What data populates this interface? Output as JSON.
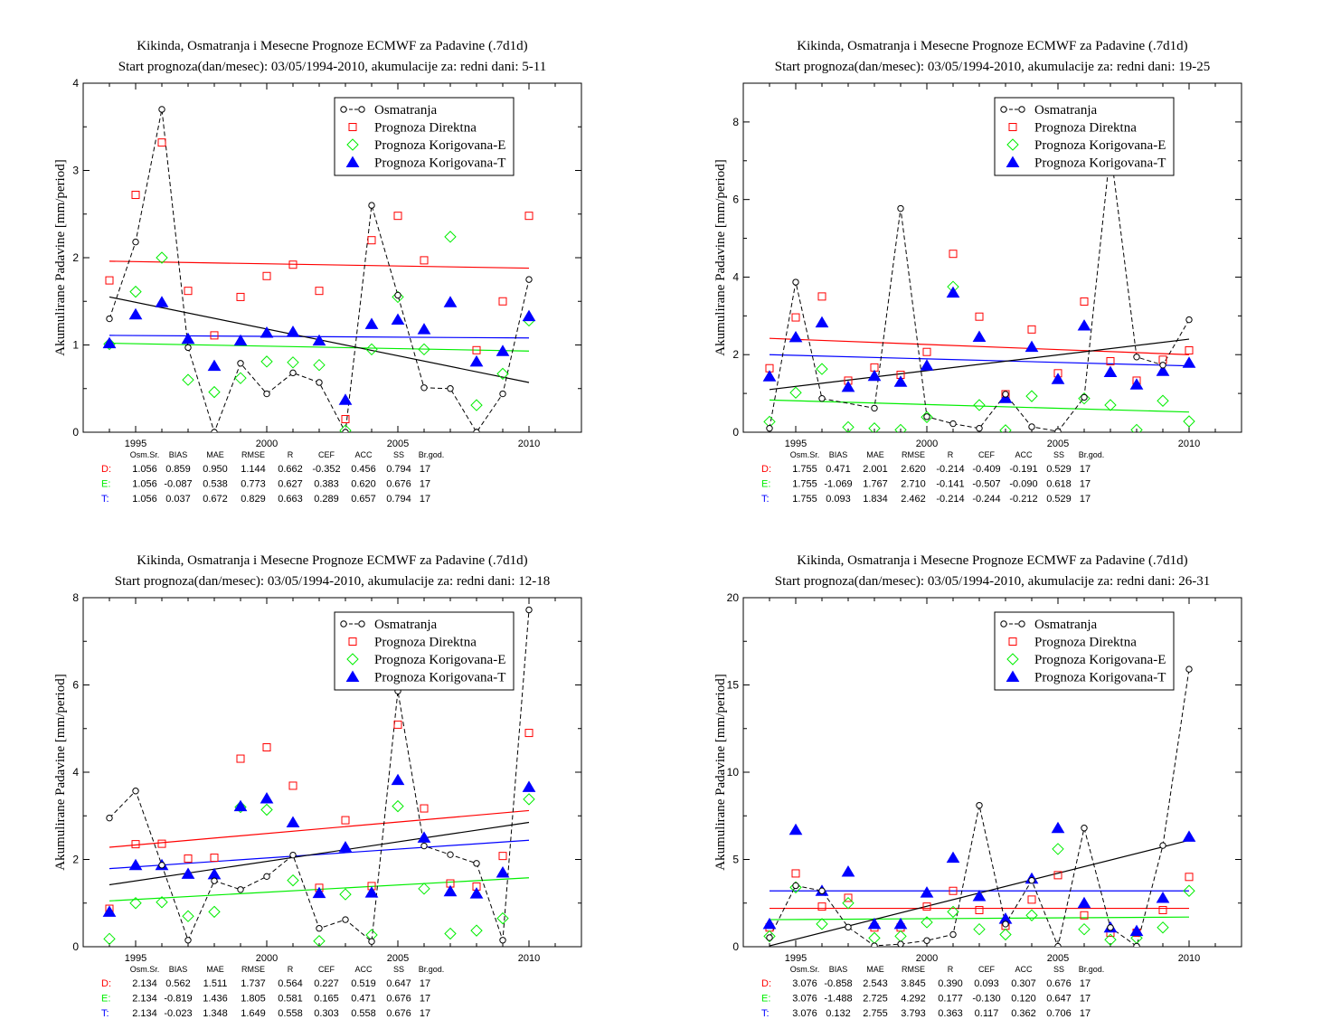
{
  "colors": {
    "obs": "#000000",
    "direct": "#ff0000",
    "corrE": "#00ee00",
    "corrT": "#0000ff"
  },
  "legend": [
    "Osmatranja",
    "Prognoza Direktna",
    "Prognoza Korigovana-E",
    "Prognoza Korigovana-T"
  ],
  "stats_headers": [
    "Osm.Sr.",
    "BIAS",
    "MAE",
    "RMSE",
    "R",
    "CEF",
    "ACC",
    "SS",
    "Br.god."
  ],
  "chart_data": [
    {
      "type": "scatter",
      "title": "Kikinda, Osmatranja i Mesecne Prognoze ECMWF za Padavine (.7d1d)",
      "subtitle": "Start prognoza(dan/mesec): 03/05/1994-2010, akumulacije za: redni dani: 5-11",
      "xlabel": "",
      "ylabel": "Akumulirane Padavine [mm/period]",
      "xlim": [
        1993,
        2012
      ],
      "ylim": [
        0,
        4
      ],
      "xticks": [
        1995,
        2000,
        2005,
        2010
      ],
      "yticks": [
        0,
        1,
        2,
        3,
        4
      ],
      "x": [
        1994,
        1995,
        1996,
        1997,
        1998,
        1999,
        2000,
        2001,
        2002,
        2003,
        2004,
        2005,
        2006,
        2007,
        2008,
        2009,
        2010
      ],
      "series": [
        {
          "name": "Osmatranja",
          "values": [
            1.3,
            2.18,
            3.7,
            0.97,
            0.0,
            0.79,
            0.44,
            0.68,
            0.57,
            0.0,
            2.6,
            1.57,
            0.51,
            0.5,
            0.0,
            0.44,
            1.75
          ]
        },
        {
          "name": "Prognoza Direktna",
          "values": [
            1.74,
            2.72,
            3.32,
            1.62,
            1.11,
            1.55,
            1.79,
            1.92,
            1.62,
            0.15,
            2.2,
            2.48,
            1.97,
            null,
            0.94,
            1.5,
            2.48
          ]
        },
        {
          "name": "Prognoza Korigovana-E",
          "values": [
            1.01,
            1.61,
            2.0,
            0.6,
            0.46,
            0.62,
            0.81,
            0.8,
            0.77,
            0.02,
            0.95,
            1.55,
            0.95,
            2.24,
            0.31,
            0.67,
            1.28
          ]
        },
        {
          "name": "Prognoza Korigovana-T",
          "values": [
            1.02,
            1.35,
            1.49,
            1.07,
            0.76,
            1.05,
            1.14,
            1.15,
            1.05,
            0.37,
            1.24,
            1.29,
            1.18,
            1.49,
            0.81,
            0.93,
            1.33
          ]
        }
      ],
      "trends": {
        "obs": [
          1.55,
          0.57
        ],
        "direct": [
          1.96,
          1.88
        ],
        "corrE": [
          1.02,
          0.93
        ],
        "corrT": [
          1.11,
          1.08
        ]
      },
      "stats": [
        {
          "label": "D:",
          "values": [
            "1.056",
            "0.859",
            "0.950",
            "1.144",
            "0.662",
            "-0.352",
            "0.456",
            "0.794",
            "17"
          ]
        },
        {
          "label": "E:",
          "values": [
            "1.056",
            "-0.087",
            "0.538",
            "0.773",
            "0.627",
            "0.383",
            "0.620",
            "0.676",
            "17"
          ]
        },
        {
          "label": "T:",
          "values": [
            "1.056",
            "0.037",
            "0.672",
            "0.829",
            "0.663",
            "0.289",
            "0.657",
            "0.794",
            "17"
          ]
        }
      ]
    },
    {
      "type": "scatter",
      "title": "Kikinda, Osmatranja i Mesecne Prognoze ECMWF za Padavine (.7d1d)",
      "subtitle": "Start prognoza(dan/mesec): 03/05/1994-2010, akumulacije za: redni dani: 19-25",
      "xlabel": "",
      "ylabel": "Akumulirane Padavine [mm/period]",
      "xlim": [
        1993,
        2012
      ],
      "ylim": [
        0,
        9
      ],
      "xticks": [
        1995,
        2000,
        2005,
        2010
      ],
      "yticks": [
        0,
        2,
        4,
        6,
        8
      ],
      "x": [
        1994,
        1995,
        1996,
        1997,
        1998,
        1999,
        2000,
        2001,
        2002,
        2003,
        2004,
        2005,
        2006,
        2007,
        2008,
        2009,
        2010
      ],
      "series": [
        {
          "name": "Osmatranja",
          "values": [
            0.1,
            3.87,
            0.87,
            null,
            0.62,
            5.77,
            0.4,
            0.22,
            0.1,
            0.98,
            0.14,
            0.02,
            0.9,
            7.3,
            1.94,
            1.73,
            2.9
          ]
        },
        {
          "name": "Prognoza Direktna",
          "values": [
            1.65,
            2.96,
            3.5,
            1.33,
            1.67,
            1.48,
            2.07,
            4.6,
            2.98,
            0.98,
            2.65,
            1.52,
            3.37,
            1.83,
            1.33,
            1.87,
            2.11
          ]
        },
        {
          "name": "Prognoza Korigovana-E",
          "values": [
            0.27,
            1.02,
            1.63,
            0.13,
            0.1,
            0.06,
            0.39,
            3.75,
            0.7,
            0.05,
            0.93,
            null,
            0.87,
            0.7,
            0.06,
            0.81,
            0.28
          ]
        },
        {
          "name": "Prognoza Korigovana-T",
          "values": [
            1.44,
            2.45,
            2.83,
            1.17,
            1.45,
            1.3,
            1.72,
            3.6,
            2.46,
            0.88,
            2.2,
            1.37,
            2.75,
            1.55,
            1.23,
            1.58,
            1.79
          ]
        }
      ],
      "trends": {
        "obs": [
          1.1,
          2.4
        ],
        "direct": [
          2.42,
          2.0
        ],
        "corrE": [
          0.83,
          0.52
        ],
        "corrT": [
          2.0,
          1.71
        ]
      },
      "stats": [
        {
          "label": "D:",
          "values": [
            "1.755",
            "0.471",
            "2.001",
            "2.620",
            "-0.214",
            "-0.409",
            "-0.191",
            "0.529",
            "17"
          ]
        },
        {
          "label": "E:",
          "values": [
            "1.755",
            "-1.069",
            "1.767",
            "2.710",
            "-0.141",
            "-0.507",
            "-0.090",
            "0.618",
            "17"
          ]
        },
        {
          "label": "T:",
          "values": [
            "1.755",
            "0.093",
            "1.834",
            "2.462",
            "-0.214",
            "-0.244",
            "-0.212",
            "0.529",
            "17"
          ]
        }
      ]
    },
    {
      "type": "scatter",
      "title": "Kikinda, Osmatranja i Mesecne Prognoze ECMWF za Padavine (.7d1d)",
      "subtitle": "Start prognoza(dan/mesec): 03/05/1994-2010, akumulacije za: redni dani: 12-18",
      "xlabel": "",
      "ylabel": "Akumulirane Padavine [mm/period]",
      "xlim": [
        1993,
        2012
      ],
      "ylim": [
        0,
        8
      ],
      "xticks": [
        1995,
        2000,
        2005,
        2010
      ],
      "yticks": [
        0,
        2,
        4,
        6,
        8
      ],
      "x": [
        1994,
        1995,
        1996,
        1997,
        1998,
        1999,
        2000,
        2001,
        2002,
        2003,
        2004,
        2005,
        2006,
        2007,
        2008,
        2009,
        2010
      ],
      "series": [
        {
          "name": "Osmatranja",
          "values": [
            2.95,
            3.57,
            1.87,
            0.15,
            1.51,
            1.31,
            1.61,
            2.1,
            0.42,
            0.62,
            0.12,
            5.86,
            2.31,
            2.11,
            1.91,
            0.15,
            7.72
          ]
        },
        {
          "name": "Prognoza Direktna",
          "values": [
            0.87,
            2.35,
            2.36,
            2.02,
            2.04,
            4.31,
            4.57,
            3.69,
            1.35,
            2.9,
            1.39,
            5.09,
            3.17,
            1.45,
            1.38,
            2.08,
            4.9
          ]
        },
        {
          "name": "Prognoza Korigovana-E",
          "values": [
            0.18,
            1.0,
            1.02,
            0.7,
            0.8,
            3.2,
            3.14,
            1.52,
            0.13,
            1.2,
            0.27,
            3.22,
            1.33,
            0.3,
            0.37,
            0.65,
            3.38
          ]
        },
        {
          "name": "Prognoza Korigovana-T",
          "values": [
            0.8,
            1.87,
            1.87,
            1.67,
            1.66,
            3.22,
            3.4,
            2.85,
            1.23,
            2.28,
            1.24,
            3.82,
            2.5,
            1.27,
            1.22,
            1.7,
            3.66
          ]
        }
      ],
      "trends": {
        "obs": [
          1.42,
          2.85
        ],
        "direct": [
          2.28,
          3.12
        ],
        "corrE": [
          1.05,
          1.58
        ],
        "corrT": [
          1.79,
          2.44
        ]
      },
      "stats": [
        {
          "label": "D:",
          "values": [
            "2.134",
            "0.562",
            "1.511",
            "1.737",
            "0.564",
            "0.227",
            "0.519",
            "0.647",
            "17"
          ]
        },
        {
          "label": "E:",
          "values": [
            "2.134",
            "-0.819",
            "1.436",
            "1.805",
            "0.581",
            "0.165",
            "0.471",
            "0.676",
            "17"
          ]
        },
        {
          "label": "T:",
          "values": [
            "2.134",
            "-0.023",
            "1.348",
            "1.649",
            "0.558",
            "0.303",
            "0.558",
            "0.676",
            "17"
          ]
        }
      ]
    },
    {
      "type": "scatter",
      "title": "Kikinda, Osmatranja i Mesecne Prognoze ECMWF za Padavine (.7d1d)",
      "subtitle": "Start prognoza(dan/mesec): 03/05/1994-2010, akumulacije za: redni dani: 26-31",
      "xlabel": "",
      "ylabel": "Akumulirane Padavine [mm/period]",
      "xlim": [
        1993,
        2012
      ],
      "ylim": [
        0,
        20
      ],
      "xticks": [
        1995,
        2000,
        2005,
        2010
      ],
      "yticks": [
        0,
        5,
        10,
        15,
        20
      ],
      "x": [
        1994,
        1995,
        1996,
        1997,
        1998,
        1999,
        2000,
        2001,
        2002,
        2003,
        2004,
        2005,
        2006,
        2007,
        2008,
        2009,
        2010
      ],
      "series": [
        {
          "name": "Osmatranja",
          "values": [
            0.52,
            3.5,
            3.2,
            1.12,
            0.05,
            0.15,
            0.35,
            0.7,
            8.1,
            1.3,
            3.8,
            0.02,
            6.8,
            1.1,
            0.03,
            5.8,
            15.9
          ]
        },
        {
          "name": "Prognoza Direktna",
          "values": [
            1.1,
            4.2,
            2.3,
            2.8,
            1.1,
            1.1,
            2.3,
            3.2,
            2.1,
            1.2,
            2.7,
            4.1,
            1.8,
            0.8,
            0.8,
            2.1,
            4.0
          ]
        },
        {
          "name": "Prognoza Korigovana-E",
          "values": [
            0.6,
            3.4,
            1.3,
            2.5,
            0.5,
            0.6,
            1.4,
            2.0,
            1.0,
            0.7,
            1.8,
            5.6,
            1.0,
            0.4,
            0.5,
            1.1,
            3.2
          ]
        },
        {
          "name": "Prognoza Korigovana-T",
          "values": [
            1.3,
            6.7,
            3.2,
            4.3,
            1.3,
            1.3,
            3.1,
            5.1,
            2.9,
            1.6,
            3.9,
            6.8,
            2.5,
            1.1,
            0.9,
            2.8,
            6.3
          ]
        }
      ],
      "trends": {
        "obs": [
          0.05,
          6.1
        ],
        "direct": [
          2.2,
          2.2
        ],
        "corrE": [
          1.55,
          1.7
        ],
        "corrT": [
          3.2,
          3.2
        ]
      },
      "stats": [
        {
          "label": "D:",
          "values": [
            "3.076",
            "-0.858",
            "2.543",
            "3.845",
            "0.390",
            "0.093",
            "0.307",
            "0.676",
            "17"
          ]
        },
        {
          "label": "E:",
          "values": [
            "3.076",
            "-1.488",
            "2.725",
            "4.292",
            "0.177",
            "-0.130",
            "0.120",
            "0.647",
            "17"
          ]
        },
        {
          "label": "T:",
          "values": [
            "3.076",
            "0.132",
            "2.755",
            "3.793",
            "0.363",
            "0.117",
            "0.362",
            "0.706",
            "17"
          ]
        }
      ]
    }
  ]
}
